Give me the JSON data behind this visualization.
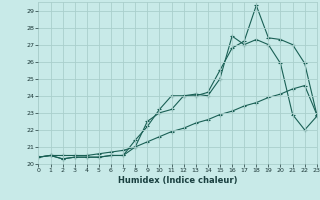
{
  "xlabel": "Humidex (Indice chaleur)",
  "background_color": "#c8eae8",
  "grid_color": "#aacfcc",
  "line_color": "#1a6055",
  "x_data": [
    0,
    1,
    2,
    3,
    4,
    5,
    6,
    7,
    8,
    9,
    10,
    11,
    12,
    13,
    14,
    15,
    16,
    17,
    18,
    19,
    20,
    21,
    22,
    23
  ],
  "y_line1": [
    20.4,
    20.5,
    20.3,
    20.4,
    20.4,
    20.4,
    20.5,
    20.5,
    21.0,
    22.5,
    23.0,
    23.2,
    24.0,
    24.0,
    24.2,
    25.5,
    26.8,
    27.2,
    29.3,
    27.4,
    27.3,
    27.0,
    25.9,
    22.9
  ],
  "y_line2": [
    20.4,
    20.5,
    20.3,
    20.4,
    20.4,
    20.4,
    20.5,
    20.5,
    21.4,
    22.2,
    23.2,
    24.0,
    24.0,
    24.1,
    24.0,
    25.0,
    27.5,
    27.0,
    27.3,
    27.0,
    25.9,
    22.9,
    22.0,
    22.8
  ],
  "y_line3": [
    20.4,
    20.5,
    20.5,
    20.5,
    20.5,
    20.6,
    20.7,
    20.8,
    21.0,
    21.3,
    21.6,
    21.9,
    22.1,
    22.4,
    22.6,
    22.9,
    23.1,
    23.4,
    23.6,
    23.9,
    24.1,
    24.4,
    24.6,
    22.9
  ],
  "xlim": [
    0,
    23
  ],
  "ylim": [
    20.0,
    29.5
  ],
  "yticks": [
    20,
    21,
    22,
    23,
    24,
    25,
    26,
    27,
    28,
    29
  ],
  "xticks": [
    0,
    1,
    2,
    3,
    4,
    5,
    6,
    7,
    8,
    9,
    10,
    11,
    12,
    13,
    14,
    15,
    16,
    17,
    18,
    19,
    20,
    21,
    22,
    23
  ]
}
